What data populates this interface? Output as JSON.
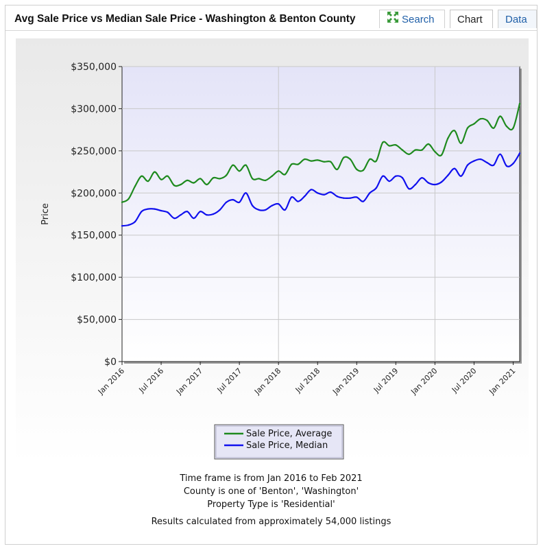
{
  "header": {
    "title": "Avg Sale Price vs Median Sale Price - Washington & Benton County",
    "tabs": {
      "search": "Search",
      "chart": "Chart",
      "data": "Data"
    },
    "active_tab": "Chart"
  },
  "colors": {
    "average": "#1e8a1e",
    "median": "#1010ee",
    "accent_link": "#1f5fa8"
  },
  "chart_data": {
    "type": "line",
    "title": "",
    "xlabel": "",
    "ylabel": "Price",
    "ylim": [
      0,
      350000
    ],
    "yticks": [
      "$0",
      "$50,000",
      "$100,000",
      "$150,000",
      "$200,000",
      "$250,000",
      "$300,000",
      "$350,000"
    ],
    "xticks": [
      "Jan 2016",
      "Jul 2016",
      "Jan 2017",
      "Jul 2017",
      "Jan 2018",
      "Jul 2018",
      "Jan 2019",
      "Jul 2019",
      "Jan 2020",
      "Jul 2020",
      "Jan 2021"
    ],
    "grid": true,
    "legend_position": "bottom-center",
    "x": [
      "Jan 2016",
      "Feb 2016",
      "Mar 2016",
      "Apr 2016",
      "May 2016",
      "Jun 2016",
      "Jul 2016",
      "Aug 2016",
      "Sep 2016",
      "Oct 2016",
      "Nov 2016",
      "Dec 2016",
      "Jan 2017",
      "Feb 2017",
      "Mar 2017",
      "Apr 2017",
      "May 2017",
      "Jun 2017",
      "Jul 2017",
      "Aug 2017",
      "Sep 2017",
      "Oct 2017",
      "Nov 2017",
      "Dec 2017",
      "Jan 2018",
      "Feb 2018",
      "Mar 2018",
      "Apr 2018",
      "May 2018",
      "Jun 2018",
      "Jul 2018",
      "Aug 2018",
      "Sep 2018",
      "Oct 2018",
      "Nov 2018",
      "Dec 2018",
      "Jan 2019",
      "Feb 2019",
      "Mar 2019",
      "Apr 2019",
      "May 2019",
      "Jun 2019",
      "Jul 2019",
      "Aug 2019",
      "Sep 2019",
      "Oct 2019",
      "Nov 2019",
      "Dec 2019",
      "Jan 2020",
      "Feb 2020",
      "Mar 2020",
      "Apr 2020",
      "May 2020",
      "Jun 2020",
      "Jul 2020",
      "Aug 2020",
      "Sep 2020",
      "Oct 2020",
      "Nov 2020",
      "Dec 2020",
      "Jan 2021",
      "Feb 2021"
    ],
    "series": [
      {
        "name": "Sale Price, Average",
        "color": "#1e8a1e",
        "values": [
          189000,
          193000,
          208000,
          220000,
          214000,
          225000,
          216000,
          220000,
          209000,
          210000,
          215000,
          212000,
          217000,
          210000,
          218000,
          217000,
          221000,
          233000,
          226000,
          233000,
          217000,
          217000,
          215000,
          220000,
          226000,
          222000,
          234000,
          234000,
          240000,
          238000,
          239000,
          237000,
          237000,
          228000,
          242000,
          240000,
          228000,
          227000,
          240000,
          238000,
          260000,
          256000,
          257000,
          251000,
          246000,
          251000,
          251000,
          258000,
          249000,
          245000,
          265000,
          274000,
          259000,
          277000,
          282000,
          288000,
          286000,
          277000,
          291000,
          279000,
          277000,
          306000
        ]
      },
      {
        "name": "Sale Price, Median",
        "color": "#1010ee",
        "values": [
          161000,
          162000,
          166000,
          178000,
          181000,
          181000,
          179000,
          177000,
          170000,
          174000,
          178000,
          170000,
          178000,
          174000,
          175000,
          180000,
          189000,
          192000,
          189000,
          200000,
          185000,
          180000,
          180000,
          185000,
          187000,
          180000,
          195000,
          190000,
          196000,
          204000,
          200000,
          198000,
          201000,
          196000,
          194000,
          194000,
          195000,
          190000,
          200000,
          206000,
          220000,
          214000,
          220000,
          218000,
          205000,
          210000,
          218000,
          212000,
          210000,
          213000,
          221000,
          229000,
          220000,
          233000,
          238000,
          240000,
          236000,
          233000,
          246000,
          232000,
          235000,
          247000
        ]
      }
    ]
  },
  "footer": {
    "line1": "Time frame is from Jan 2016 to Feb 2021",
    "line2": "County is one of 'Benton', 'Washington'",
    "line3": "Property Type is 'Residential'",
    "line4": "Results calculated from approximately 54,000 listings"
  }
}
